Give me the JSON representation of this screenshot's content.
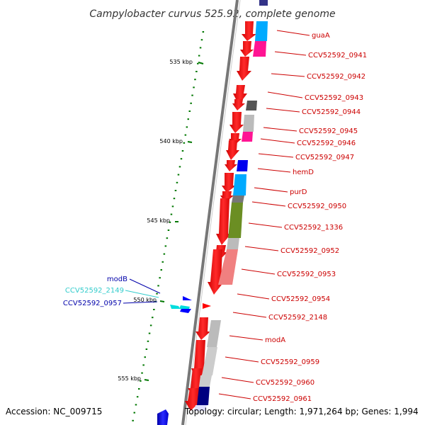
{
  "title": "Campylobacter curvus 525.92, complete genome",
  "accession": "Accession: NC_009715",
  "topology": "Topology: circular; Length: 1,971,264 bp; Genes: 1,994",
  "ruler": [
    "535 kbp",
    "540 kbp",
    "545 kbp",
    "550 kbp",
    "555 kbp"
  ],
  "genes_right": [
    {
      "name": "guaA",
      "color": "#cc0000"
    },
    {
      "name": "CCV52592_0941",
      "color": "#cc0000"
    },
    {
      "name": "CCV52592_0942",
      "color": "#cc0000"
    },
    {
      "name": "CCV52592_0943",
      "color": "#cc0000"
    },
    {
      "name": "CCV52592_0944",
      "color": "#cc0000"
    },
    {
      "name": "CCV52592_0945",
      "color": "#cc0000"
    },
    {
      "name": "CCV52592_0946",
      "color": "#cc0000"
    },
    {
      "name": "CCV52592_0947",
      "color": "#cc0000"
    },
    {
      "name": "hemD",
      "color": "#cc0000"
    },
    {
      "name": "purD",
      "color": "#cc0000"
    },
    {
      "name": "CCV52592_0950",
      "color": "#cc0000"
    },
    {
      "name": "CCV52592_1336",
      "color": "#cc0000"
    },
    {
      "name": "CCV52592_0952",
      "color": "#cc0000"
    },
    {
      "name": "CCV52592_0953",
      "color": "#cc0000"
    },
    {
      "name": "CCV52592_0954",
      "color": "#cc0000"
    },
    {
      "name": "CCV52592_2148",
      "color": "#cc0000"
    },
    {
      "name": "modA",
      "color": "#cc0000"
    },
    {
      "name": "CCV52592_0959",
      "color": "#cc0000"
    },
    {
      "name": "CCV52592_0960",
      "color": "#cc0000"
    },
    {
      "name": "CCV52592_0961",
      "color": "#cc0000"
    }
  ],
  "genes_left": [
    {
      "name": "modB",
      "color": "#0000aa"
    },
    {
      "name": "CCV52592_2149",
      "color": "#33cccc"
    },
    {
      "name": "CCV52592_0957",
      "color": "#0000aa"
    }
  ],
  "colors": {
    "gene_forward": "#ff0000",
    "gene_reverse": "#0000ff",
    "backbone": "#777777",
    "tick": "#007700"
  }
}
